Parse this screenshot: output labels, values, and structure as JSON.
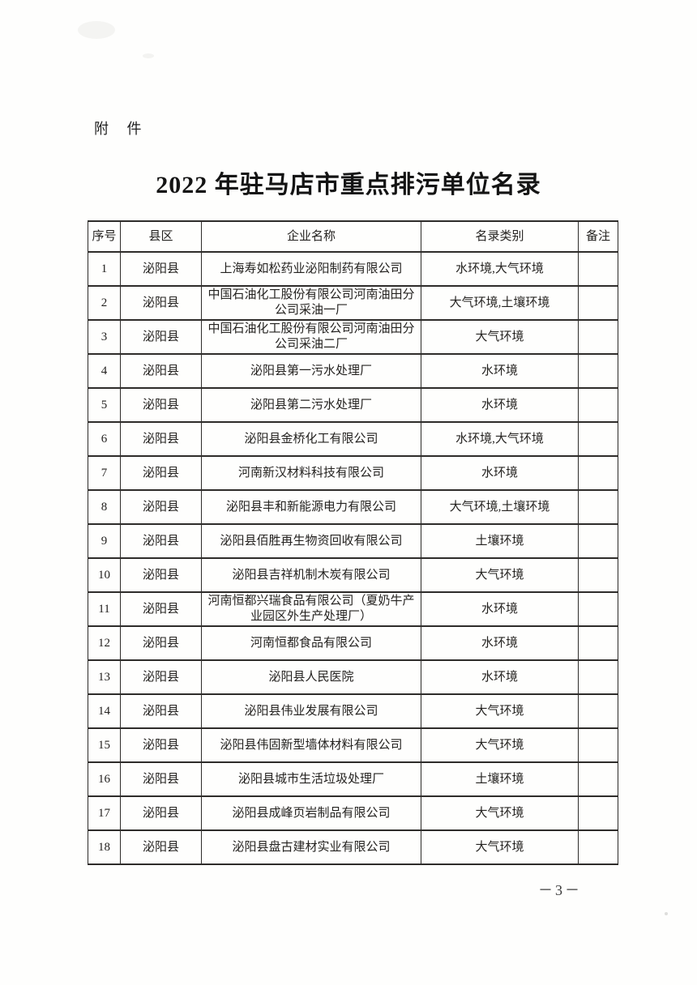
{
  "page": {
    "attachment_label": "附 件",
    "title": "2022 年驻马店市重点排污单位名录",
    "page_number": "－3－"
  },
  "table": {
    "headers": [
      "序号",
      "县区",
      "企业名称",
      "名录类别",
      "备注"
    ],
    "rows": [
      {
        "no": "1",
        "county": "泌阳县",
        "company": "上海寿如松药业泌阳制药有限公司",
        "category": "水环境,大气环境",
        "remark": ""
      },
      {
        "no": "2",
        "county": "泌阳县",
        "company": "中国石油化工股份有限公司河南油田分公司采油一厂",
        "category": "大气环境,土壤环境",
        "remark": ""
      },
      {
        "no": "3",
        "county": "泌阳县",
        "company": "中国石油化工股份有限公司河南油田分公司采油二厂",
        "category": "大气环境",
        "remark": ""
      },
      {
        "no": "4",
        "county": "泌阳县",
        "company": "泌阳县第一污水处理厂",
        "category": "水环境",
        "remark": ""
      },
      {
        "no": "5",
        "county": "泌阳县",
        "company": "泌阳县第二污水处理厂",
        "category": "水环境",
        "remark": ""
      },
      {
        "no": "6",
        "county": "泌阳县",
        "company": "泌阳县金桥化工有限公司",
        "category": "水环境,大气环境",
        "remark": ""
      },
      {
        "no": "7",
        "county": "泌阳县",
        "company": "河南新汉材料科技有限公司",
        "category": "水环境",
        "remark": ""
      },
      {
        "no": "8",
        "county": "泌阳县",
        "company": "泌阳县丰和新能源电力有限公司",
        "category": "大气环境,土壤环境",
        "remark": ""
      },
      {
        "no": "9",
        "county": "泌阳县",
        "company": "泌阳县佰胜再生物资回收有限公司",
        "category": "土壤环境",
        "remark": ""
      },
      {
        "no": "10",
        "county": "泌阳县",
        "company": "泌阳县吉祥机制木炭有限公司",
        "category": "大气环境",
        "remark": ""
      },
      {
        "no": "11",
        "county": "泌阳县",
        "company": "河南恒都兴瑞食品有限公司（夏奶牛产业园区外生产处理厂）",
        "category": "水环境",
        "remark": ""
      },
      {
        "no": "12",
        "county": "泌阳县",
        "company": "河南恒都食品有限公司",
        "category": "水环境",
        "remark": ""
      },
      {
        "no": "13",
        "county": "泌阳县",
        "company": "泌阳县人民医院",
        "category": "水环境",
        "remark": ""
      },
      {
        "no": "14",
        "county": "泌阳县",
        "company": "泌阳县伟业发展有限公司",
        "category": "大气环境",
        "remark": ""
      },
      {
        "no": "15",
        "county": "泌阳县",
        "company": "泌阳县伟固新型墙体材料有限公司",
        "category": "大气环境",
        "remark": ""
      },
      {
        "no": "16",
        "county": "泌阳县",
        "company": "泌阳县城市生活垃圾处理厂",
        "category": "土壤环境",
        "remark": ""
      },
      {
        "no": "17",
        "county": "泌阳县",
        "company": "泌阳县成峰页岩制品有限公司",
        "category": "大气环境",
        "remark": ""
      },
      {
        "no": "18",
        "county": "泌阳县",
        "company": "泌阳县盘古建材实业有限公司",
        "category": "大气环境",
        "remark": ""
      }
    ]
  }
}
